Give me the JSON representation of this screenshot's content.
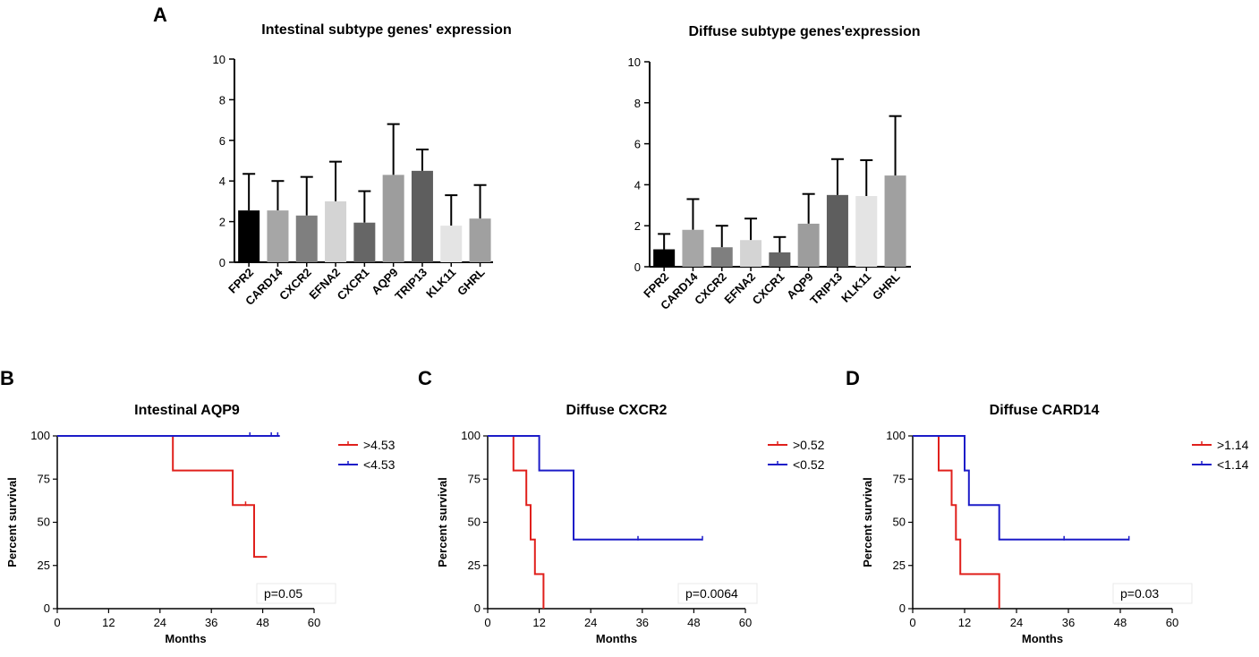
{
  "panel_labels": {
    "a": "A",
    "b": "B",
    "c": "C",
    "d": "D"
  },
  "chart_data": [
    {
      "type": "bar",
      "title": "Intestinal subtype genes' expression",
      "categories": [
        "FPR2",
        "CARD14",
        "CXCR2",
        "EFNA2",
        "CXCR1",
        "AQP9",
        "TRIP13",
        "KLK11",
        "GHRL"
      ],
      "values": [
        2.55,
        2.55,
        2.3,
        3.0,
        1.95,
        4.3,
        4.5,
        1.8,
        2.15
      ],
      "errors": [
        1.8,
        1.45,
        1.9,
        1.95,
        1.55,
        2.5,
        1.05,
        1.5,
        1.65
      ],
      "colors": [
        "#000000",
        "#a6a6a6",
        "#7f7f7f",
        "#d4d4d4",
        "#666666",
        "#9d9d9d",
        "#5e5e5e",
        "#e4e4e4",
        "#a0a0a0"
      ],
      "ylim": [
        0,
        10
      ],
      "yticks": [
        "0",
        "2",
        "4",
        "6",
        "8",
        "10"
      ],
      "xlabel": "",
      "ylabel": ""
    },
    {
      "type": "bar",
      "title": "Diffuse subtype genes'expression",
      "categories": [
        "FPR2",
        "CARD14",
        "CXCR2",
        "EFNA2",
        "CXCR1",
        "AQP9",
        "TRIP13",
        "KLK11",
        "GHRL"
      ],
      "values": [
        0.85,
        1.8,
        0.95,
        1.3,
        0.7,
        2.1,
        3.5,
        3.45,
        4.45
      ],
      "errors": [
        0.75,
        1.5,
        1.05,
        1.05,
        0.75,
        1.45,
        1.75,
        1.75,
        2.9
      ],
      "colors": [
        "#000000",
        "#a6a6a6",
        "#7f7f7f",
        "#d4d4d4",
        "#666666",
        "#9d9d9d",
        "#5e5e5e",
        "#e4e4e4",
        "#a0a0a0"
      ],
      "ylim": [
        0,
        10
      ],
      "yticks": [
        "0",
        "2",
        "4",
        "6",
        "8",
        "10"
      ],
      "xlabel": "",
      "ylabel": ""
    },
    {
      "type": "line",
      "title": "Intestinal AQP9",
      "xlabel": "Months",
      "ylabel": "Percent survival",
      "xlim": [
        0,
        60
      ],
      "ylim": [
        0,
        100
      ],
      "xticks": [
        "0",
        "12",
        "24",
        "36",
        "48",
        "60"
      ],
      "yticks": [
        "0",
        "25",
        "50",
        "75",
        "100"
      ],
      "pvalue": "p=0.05",
      "series": [
        {
          "name": ">4.53",
          "color": "#e0201c",
          "x": [
            0,
            27,
            27,
            41,
            41,
            46,
            46,
            49
          ],
          "y": [
            100,
            100,
            80,
            80,
            60,
            60,
            30,
            30
          ],
          "censor_x": [
            44
          ],
          "censor_y": [
            60
          ]
        },
        {
          "name": "<4.53",
          "color": "#1c1cc8",
          "x": [
            0,
            52
          ],
          "y": [
            100,
            100
          ],
          "censor_x": [
            45,
            50,
            51.5
          ],
          "censor_y": [
            100,
            100,
            100
          ]
        }
      ]
    },
    {
      "type": "line",
      "title": "Diffuse CXCR2",
      "xlabel": "Months",
      "ylabel": "Percent survival",
      "xlim": [
        0,
        60
      ],
      "ylim": [
        0,
        100
      ],
      "xticks": [
        "0",
        "12",
        "24",
        "36",
        "48",
        "60"
      ],
      "yticks": [
        "0",
        "25",
        "50",
        "75",
        "100"
      ],
      "pvalue": "p=0.0064",
      "series": [
        {
          "name": ">0.52",
          "color": "#e0201c",
          "x": [
            0,
            6,
            6,
            9,
            9,
            10,
            10,
            11,
            11,
            13,
            13
          ],
          "y": [
            100,
            100,
            80,
            80,
            60,
            60,
            40,
            40,
            20,
            20,
            0
          ],
          "censor_x": [],
          "censor_y": []
        },
        {
          "name": "<0.52",
          "color": "#1c1cc8",
          "x": [
            0,
            12,
            12,
            20,
            20,
            50
          ],
          "y": [
            100,
            100,
            80,
            80,
            40,
            40
          ],
          "censor_x": [
            35,
            50
          ],
          "censor_y": [
            40,
            40
          ]
        }
      ]
    },
    {
      "type": "line",
      "title": "Diffuse CARD14",
      "xlabel": "Months",
      "ylabel": "Percent survival",
      "xlim": [
        0,
        60
      ],
      "ylim": [
        0,
        100
      ],
      "xticks": [
        "0",
        "12",
        "24",
        "36",
        "48",
        "60"
      ],
      "yticks": [
        "0",
        "25",
        "50",
        "75",
        "100"
      ],
      "pvalue": "p=0.03",
      "series": [
        {
          "name": ">1.14",
          "color": "#e0201c",
          "x": [
            0,
            6,
            6,
            9,
            9,
            10,
            10,
            11,
            11,
            20,
            20
          ],
          "y": [
            100,
            100,
            80,
            80,
            60,
            60,
            40,
            40,
            20,
            20,
            0
          ],
          "censor_x": [],
          "censor_y": []
        },
        {
          "name": "<1.14",
          "color": "#1c1cc8",
          "x": [
            0,
            12,
            12,
            13,
            13,
            20,
            20,
            50
          ],
          "y": [
            100,
            100,
            80,
            80,
            60,
            60,
            40,
            40
          ],
          "censor_x": [
            12,
            35,
            50
          ],
          "censor_y": [
            80,
            40,
            40
          ]
        }
      ]
    }
  ]
}
